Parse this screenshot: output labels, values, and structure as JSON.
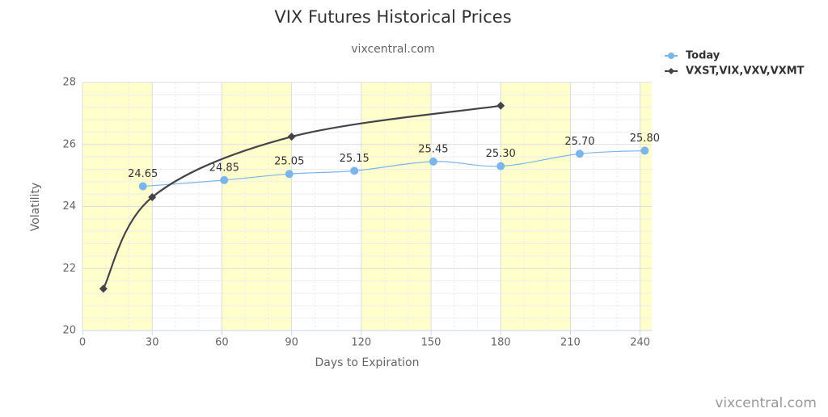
{
  "chart_data": {
    "type": "line",
    "title": "VIX Futures Historical Prices",
    "subtitle": "vixcentral.com",
    "x_label": "Days to Expiration",
    "y_label": "Volatility",
    "watermark": "vixcentral.com",
    "xlim": [
      0,
      245
    ],
    "xticks": [
      0,
      30,
      60,
      90,
      120,
      150,
      180,
      210,
      240
    ],
    "ylim": [
      20,
      28
    ],
    "yticks": [
      20,
      22,
      24,
      26,
      28
    ],
    "grid": true,
    "minor_grid": true,
    "legend": "top-right",
    "x_bands": [
      [
        0,
        30
      ],
      [
        60,
        90
      ],
      [
        120,
        150
      ],
      [
        180,
        210
      ],
      [
        240,
        245
      ]
    ],
    "band_color": "#ffffcc",
    "series": [
      {
        "name": "Today",
        "color": "#7cb5ec",
        "marker": "circle",
        "smooth": true,
        "x": [
          26,
          61,
          89,
          117,
          151,
          180,
          214,
          242
        ],
        "values": [
          24.65,
          24.85,
          25.05,
          25.15,
          25.45,
          25.3,
          25.7,
          25.8
        ],
        "value_labels": [
          "24.65",
          "24.85",
          "25.05",
          "25.15",
          "25.45",
          "25.30",
          "25.70",
          "25.80"
        ]
      },
      {
        "name": "VXST,VIX,VXV,VXMT",
        "color": "#434348",
        "marker": "diamond",
        "smooth": true,
        "x": [
          9,
          30,
          90,
          180
        ],
        "values": [
          21.35,
          24.3,
          26.25,
          27.25
        ]
      }
    ]
  }
}
